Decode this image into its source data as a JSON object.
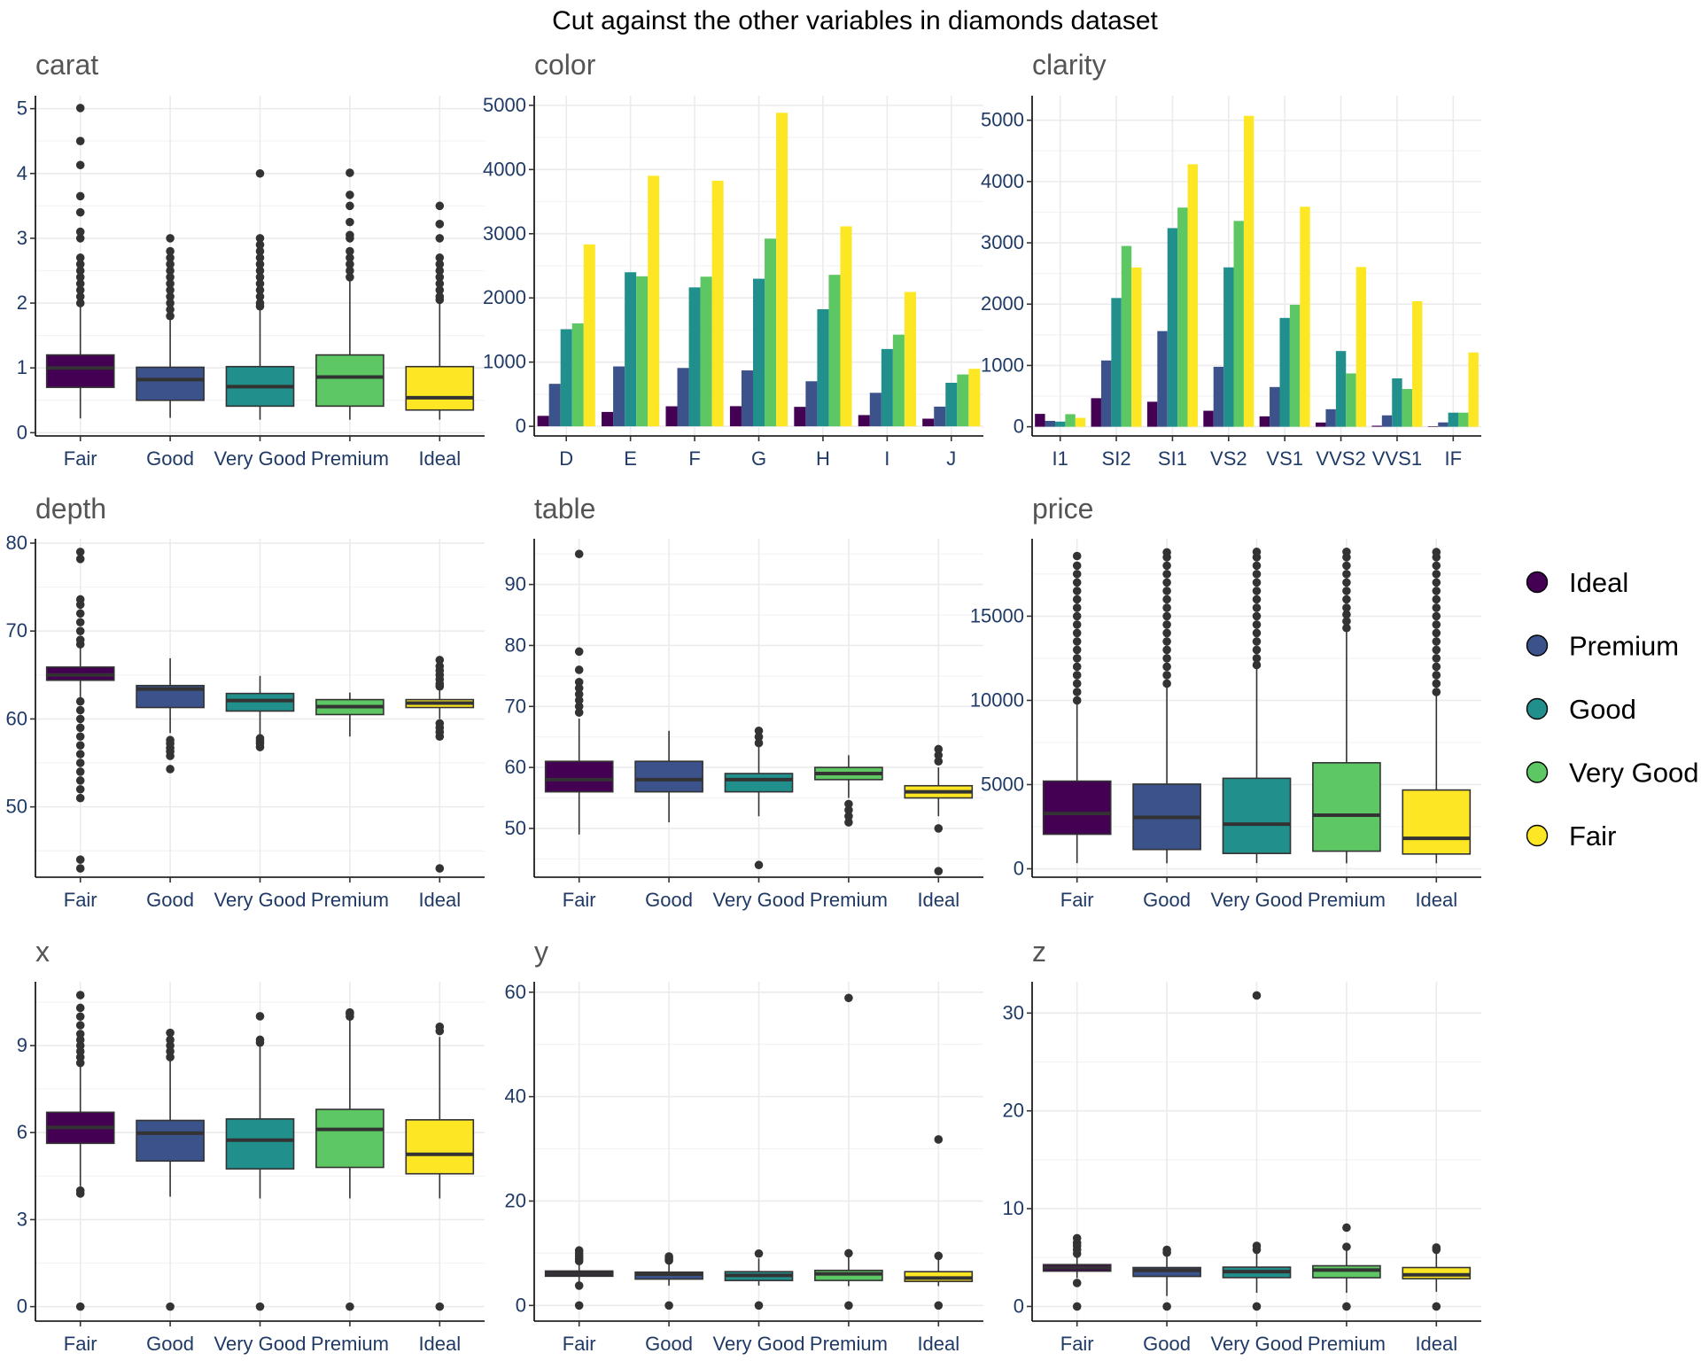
{
  "title": "Cut against the other variables in diamonds dataset",
  "colors": {
    "Ideal": "#440154",
    "Premium": "#3b528b",
    "Good": "#21908c",
    "Very Good": "#5dc863",
    "Fair": "#fde725"
  },
  "legend": {
    "items": [
      {
        "label": "Ideal",
        "color": "#440154"
      },
      {
        "label": "Premium",
        "color": "#3b528b"
      },
      {
        "label": "Good",
        "color": "#21908c"
      },
      {
        "label": "Very Good",
        "color": "#5dc863"
      },
      {
        "label": "Fair",
        "color": "#fde725"
      }
    ]
  },
  "chart_data": [
    {
      "type": "boxplot",
      "title": "carat",
      "categories": [
        "Fair",
        "Good",
        "Very Good",
        "Premium",
        "Ideal"
      ],
      "fill_order": [
        "Ideal",
        "Premium",
        "Good",
        "Very Good",
        "Fair"
      ],
      "yticks": [
        0,
        1,
        2,
        3,
        4,
        5
      ],
      "ylim": [
        -0.05,
        5.2
      ],
      "boxes": [
        {
          "q1": 0.7,
          "median": 1.0,
          "q3": 1.2,
          "lower": 0.22,
          "upper": 1.95,
          "outliers": [
            2.0,
            2.1,
            2.2,
            2.3,
            2.4,
            2.5,
            2.6,
            2.7,
            3.0,
            3.1,
            3.4,
            3.65,
            4.13,
            4.5,
            5.01
          ]
        },
        {
          "q1": 0.5,
          "median": 0.82,
          "q3": 1.01,
          "lower": 0.23,
          "upper": 1.77,
          "outliers": [
            1.8,
            1.9,
            2.0,
            2.1,
            2.2,
            2.3,
            2.4,
            2.5,
            2.6,
            2.7,
            2.8,
            3.0
          ]
        },
        {
          "q1": 0.41,
          "median": 0.71,
          "q3": 1.02,
          "lower": 0.2,
          "upper": 1.93,
          "outliers": [
            1.95,
            2.0,
            2.1,
            2.2,
            2.3,
            2.4,
            2.5,
            2.6,
            2.7,
            2.8,
            2.9,
            3.0,
            4.0
          ]
        },
        {
          "q1": 0.41,
          "median": 0.86,
          "q3": 1.2,
          "lower": 0.2,
          "upper": 2.38,
          "outliers": [
            2.4,
            2.5,
            2.6,
            2.7,
            2.8,
            3.0,
            3.05,
            3.25,
            3.5,
            3.67,
            4.01
          ]
        },
        {
          "q1": 0.35,
          "median": 0.54,
          "q3": 1.02,
          "lower": 0.2,
          "upper": 2.02,
          "outliers": [
            2.05,
            2.1,
            2.2,
            2.3,
            2.4,
            2.5,
            2.6,
            2.7,
            3.0,
            3.22,
            3.5
          ]
        }
      ]
    },
    {
      "type": "bar",
      "title": "color",
      "categories": [
        "D",
        "E",
        "F",
        "G",
        "H",
        "I",
        "J"
      ],
      "series_order": [
        "Ideal",
        "Premium",
        "Good",
        "Very Good",
        "Fair"
      ],
      "series": [
        {
          "name": "Ideal",
          "values": [
            163,
            224,
            312,
            314,
            303,
            175,
            119
          ]
        },
        {
          "name": "Premium",
          "values": [
            662,
            933,
            909,
            871,
            702,
            522,
            307
          ]
        },
        {
          "name": "Good",
          "values": [
            1513,
            2400,
            2164,
            2299,
            1824,
            1204,
            678
          ]
        },
        {
          "name": "Very Good",
          "values": [
            1603,
            2337,
            2331,
            2924,
            2360,
            1428,
            808
          ]
        },
        {
          "name": "Fair",
          "values": [
            2834,
            3903,
            3826,
            4884,
            3115,
            2093,
            896
          ]
        }
      ],
      "yticks": [
        0,
        1000,
        2000,
        3000,
        4000,
        5000
      ],
      "ylim": [
        -150,
        5150
      ]
    },
    {
      "type": "bar",
      "title": "clarity",
      "categories": [
        "I1",
        "SI2",
        "SI1",
        "VS2",
        "VS1",
        "VVS2",
        "VVS1",
        "IF"
      ],
      "series_order": [
        "Ideal",
        "Premium",
        "Good",
        "Very Good",
        "Fair"
      ],
      "series": [
        {
          "name": "Ideal",
          "values": [
            210,
            466,
            408,
            261,
            170,
            69,
            17,
            9
          ]
        },
        {
          "name": "Premium",
          "values": [
            96,
            1081,
            1560,
            978,
            648,
            286,
            186,
            71
          ]
        },
        {
          "name": "Good",
          "values": [
            84,
            2100,
            3240,
            2600,
            1775,
            1235,
            789,
            230
          ]
        },
        {
          "name": "Very Good",
          "values": [
            205,
            2949,
            3575,
            3357,
            1989,
            870,
            616,
            230
          ]
        },
        {
          "name": "Fair",
          "values": [
            146,
            2598,
            4282,
            5071,
            3589,
            2606,
            2047,
            1212
          ]
        }
      ],
      "yticks": [
        0,
        1000,
        2000,
        3000,
        4000,
        5000
      ],
      "ylim": [
        -150,
        5400
      ]
    },
    {
      "type": "boxplot",
      "title": "depth",
      "categories": [
        "Fair",
        "Good",
        "Very Good",
        "Premium",
        "Ideal"
      ],
      "fill_order": [
        "Ideal",
        "Premium",
        "Good",
        "Very Good",
        "Fair"
      ],
      "yticks": [
        50,
        60,
        70,
        80
      ],
      "ylim": [
        42,
        80.5
      ],
      "boxes": [
        {
          "q1": 64.4,
          "median": 65,
          "q3": 65.9,
          "lower": 62.3,
          "upper": 68.2,
          "outliers": [
            43,
            44,
            51,
            52,
            53,
            54,
            55,
            56,
            57,
            58,
            59,
            60,
            61,
            62,
            68.5,
            69,
            70,
            71,
            72,
            73,
            73.6,
            78.2,
            79
          ]
        },
        {
          "q1": 61.3,
          "median": 63.4,
          "q3": 63.8,
          "lower": 58.4,
          "upper": 66.9,
          "outliers": [
            54.3,
            55.8,
            56.3,
            56.7,
            57.2,
            57.6
          ]
        },
        {
          "q1": 60.9,
          "median": 62.1,
          "q3": 62.9,
          "lower": 58,
          "upper": 64.9,
          "outliers": [
            56.8,
            57.2,
            57.5,
            57.8
          ]
        },
        {
          "q1": 60.5,
          "median": 61.4,
          "q3": 62.2,
          "lower": 58,
          "upper": 63,
          "outliers": []
        },
        {
          "q1": 61.3,
          "median": 61.8,
          "q3": 62.2,
          "lower": 60,
          "upper": 63.5,
          "outliers": [
            43,
            58,
            58.5,
            59,
            59.5,
            63.7,
            64,
            64.5,
            65,
            65.5,
            66,
            66.7
          ]
        }
      ]
    },
    {
      "type": "boxplot",
      "title": "table",
      "categories": [
        "Fair",
        "Good",
        "Very Good",
        "Premium",
        "Ideal"
      ],
      "fill_order": [
        "Ideal",
        "Premium",
        "Good",
        "Very Good",
        "Fair"
      ],
      "yticks": [
        50,
        60,
        70,
        80,
        90
      ],
      "ylim": [
        42,
        97.5
      ],
      "boxes": [
        {
          "q1": 56,
          "median": 58,
          "q3": 61,
          "lower": 49,
          "upper": 68,
          "outliers": [
            69,
            70,
            71,
            72,
            73,
            74,
            76,
            79,
            95
          ]
        },
        {
          "q1": 56,
          "median": 58,
          "q3": 61,
          "lower": 51,
          "upper": 66,
          "outliers": []
        },
        {
          "q1": 56,
          "median": 58,
          "q3": 59,
          "lower": 52,
          "upper": 63.5,
          "outliers": [
            44,
            64,
            65,
            66
          ]
        },
        {
          "q1": 58,
          "median": 59,
          "q3": 60,
          "lower": 55,
          "upper": 62,
          "outliers": [
            51,
            52,
            53,
            54
          ]
        },
        {
          "q1": 55,
          "median": 56,
          "q3": 57,
          "lower": 52,
          "upper": 60,
          "outliers": [
            43,
            50,
            61,
            62,
            63
          ]
        }
      ]
    },
    {
      "type": "boxplot",
      "title": "price",
      "categories": [
        "Fair",
        "Good",
        "Very Good",
        "Premium",
        "Ideal"
      ],
      "fill_order": [
        "Ideal",
        "Premium",
        "Good",
        "Very Good",
        "Fair"
      ],
      "yticks": [
        0,
        5000,
        10000,
        15000
      ],
      "ylim": [
        -500,
        19600
      ],
      "boxes": [
        {
          "q1": 2050,
          "median": 3282,
          "q3": 5206,
          "lower": 337,
          "upper": 9900,
          "outliers": [
            10000,
            10500,
            11000,
            11500,
            12000,
            12500,
            13000,
            13500,
            14000,
            14500,
            15000,
            15500,
            16000,
            16500,
            17000,
            17500,
            18000,
            18574
          ]
        },
        {
          "q1": 1145,
          "median": 3050,
          "q3": 5028,
          "lower": 327,
          "upper": 10850,
          "outliers": [
            11000,
            11500,
            12000,
            12500,
            13000,
            13500,
            14000,
            14500,
            15000,
            15500,
            16000,
            16500,
            17000,
            17500,
            18000,
            18500,
            18788
          ]
        },
        {
          "q1": 912,
          "median": 2648,
          "q3": 5373,
          "lower": 336,
          "upper": 12000,
          "outliers": [
            12100,
            12500,
            13000,
            13500,
            14000,
            14500,
            15000,
            15500,
            16000,
            16500,
            17000,
            17500,
            18000,
            18500,
            18818
          ]
        },
        {
          "q1": 1046,
          "median": 3185,
          "q3": 6296,
          "lower": 326,
          "upper": 14200,
          "outliers": [
            14300,
            14700,
            15100,
            15500,
            16000,
            16500,
            17000,
            17500,
            18000,
            18500,
            18823
          ]
        },
        {
          "q1": 878,
          "median": 1810,
          "q3": 4678,
          "lower": 326,
          "upper": 10400,
          "outliers": [
            10500,
            11000,
            11500,
            12000,
            12500,
            13000,
            13500,
            14000,
            14500,
            15000,
            15500,
            16000,
            16500,
            17000,
            17500,
            18000,
            18500,
            18806
          ]
        }
      ]
    },
    {
      "type": "boxplot",
      "title": "x",
      "categories": [
        "Fair",
        "Good",
        "Very Good",
        "Premium",
        "Ideal"
      ],
      "fill_order": [
        "Ideal",
        "Premium",
        "Good",
        "Very Good",
        "Fair"
      ],
      "yticks": [
        0,
        3,
        6,
        9
      ],
      "ylim": [
        -0.5,
        11.2
      ],
      "boxes": [
        {
          "q1": 5.63,
          "median": 6.18,
          "q3": 6.7,
          "lower": 4.15,
          "upper": 8.3,
          "outliers": [
            0,
            3.9,
            4.0,
            8.4,
            8.6,
            8.8,
            9.0,
            9.2,
            9.4,
            9.7,
            10.0,
            10.3,
            10.74
          ]
        },
        {
          "q1": 5.02,
          "median": 5.98,
          "q3": 6.42,
          "lower": 3.79,
          "upper": 8.5,
          "outliers": [
            0,
            8.6,
            8.8,
            9.0,
            9.2,
            9.44
          ]
        },
        {
          "q1": 4.75,
          "median": 5.74,
          "q3": 6.47,
          "lower": 3.73,
          "upper": 9.0,
          "outliers": [
            0,
            9.1,
            9.2,
            10.01
          ]
        },
        {
          "q1": 4.8,
          "median": 6.11,
          "q3": 6.8,
          "lower": 3.73,
          "upper": 9.9,
          "outliers": [
            0,
            10.0,
            10.1,
            10.14
          ]
        },
        {
          "q1": 4.58,
          "median": 5.25,
          "q3": 6.44,
          "lower": 3.73,
          "upper": 9.3,
          "outliers": [
            0,
            9.5,
            9.65
          ]
        }
      ]
    },
    {
      "type": "boxplot",
      "title": "y",
      "categories": [
        "Fair",
        "Good",
        "Very Good",
        "Premium",
        "Ideal"
      ],
      "fill_order": [
        "Ideal",
        "Premium",
        "Good",
        "Very Good",
        "Fair"
      ],
      "yticks": [
        0,
        20,
        40,
        60
      ],
      "ylim": [
        -3,
        62
      ],
      "boxes": [
        {
          "q1": 5.6,
          "median": 6.1,
          "q3": 6.6,
          "lower": 4.1,
          "upper": 8.3,
          "outliers": [
            0,
            3.8,
            8.5,
            9.0,
            9.5,
            10.0,
            10.54
          ]
        },
        {
          "q1": 5.05,
          "median": 5.99,
          "q3": 6.38,
          "lower": 3.8,
          "upper": 8.4,
          "outliers": [
            0,
            8.6,
            9.0,
            9.38
          ]
        },
        {
          "q1": 4.78,
          "median": 5.77,
          "q3": 6.47,
          "lower": 3.8,
          "upper": 9.0,
          "outliers": [
            0,
            9.94
          ]
        },
        {
          "q1": 4.79,
          "median": 6.06,
          "q3": 6.72,
          "lower": 3.7,
          "upper": 9.5,
          "outliers": [
            0,
            10.0,
            58.9
          ]
        },
        {
          "q1": 4.6,
          "median": 5.26,
          "q3": 6.47,
          "lower": 3.7,
          "upper": 9.0,
          "outliers": [
            0,
            9.5,
            31.8
          ]
        }
      ]
    },
    {
      "type": "boxplot",
      "title": "z",
      "categories": [
        "Fair",
        "Good",
        "Very Good",
        "Premium",
        "Ideal"
      ],
      "fill_order": [
        "Ideal",
        "Premium",
        "Good",
        "Very Good",
        "Fair"
      ],
      "yticks": [
        0,
        10,
        20,
        30
      ],
      "ylim": [
        -1.5,
        33.2
      ],
      "boxes": [
        {
          "q1": 3.61,
          "median": 3.97,
          "q3": 4.28,
          "lower": 2.9,
          "upper": 5.2,
          "outliers": [
            0,
            2.4,
            5.4,
            5.8,
            6.2,
            6.5,
            6.98
          ]
        },
        {
          "q1": 3.07,
          "median": 3.7,
          "q3": 3.98,
          "lower": 1.07,
          "upper": 5.3,
          "outliers": [
            0,
            5.5,
            5.79
          ]
        },
        {
          "q1": 2.95,
          "median": 3.56,
          "q3": 4.02,
          "lower": 1.4,
          "upper": 5.6,
          "outliers": [
            0,
            5.8,
            6.2,
            31.8
          ]
        },
        {
          "q1": 2.94,
          "median": 3.72,
          "q3": 4.16,
          "lower": 1.4,
          "upper": 5.9,
          "outliers": [
            0,
            6.1,
            8.06
          ]
        },
        {
          "q1": 2.84,
          "median": 3.23,
          "q3": 3.98,
          "lower": 1.5,
          "upper": 5.6,
          "outliers": [
            0,
            5.8,
            6.03
          ]
        }
      ]
    }
  ]
}
